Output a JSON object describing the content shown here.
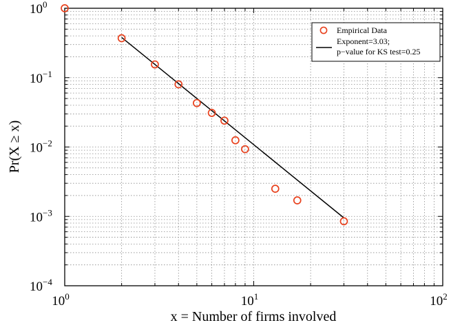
{
  "chart_data": {
    "type": "scatter",
    "xscale": "log",
    "yscale": "log",
    "xlim": [
      1,
      100
    ],
    "ylim": [
      0.0001,
      1
    ],
    "xlabel": "x = Number of firms involved",
    "ylabel": "Pr(X ≥ x)",
    "grid": true,
    "legend_position": "top-right",
    "x_ticks": [
      {
        "value": 1,
        "base": "10",
        "exp": "0"
      },
      {
        "value": 10,
        "base": "10",
        "exp": "1"
      },
      {
        "value": 100,
        "base": "10",
        "exp": "2"
      }
    ],
    "y_ticks": [
      {
        "value": 1,
        "base": "10",
        "exp": "0"
      },
      {
        "value": 0.1,
        "base": "10",
        "exp": "−1"
      },
      {
        "value": 0.01,
        "base": "10",
        "exp": "−2"
      },
      {
        "value": 0.001,
        "base": "10",
        "exp": "−3"
      },
      {
        "value": 0.0001,
        "base": "10",
        "exp": "−4"
      }
    ],
    "series": [
      {
        "name": "Empirical Data",
        "kind": "markers",
        "color": "#e8401c",
        "points": [
          {
            "x": 1,
            "y": 1.0
          },
          {
            "x": 2,
            "y": 0.37
          },
          {
            "x": 3,
            "y": 0.155
          },
          {
            "x": 4,
            "y": 0.08
          },
          {
            "x": 5,
            "y": 0.043
          },
          {
            "x": 6,
            "y": 0.031
          },
          {
            "x": 7,
            "y": 0.024
          },
          {
            "x": 8,
            "y": 0.0125
          },
          {
            "x": 9,
            "y": 0.0093
          },
          {
            "x": 13,
            "y": 0.0025
          },
          {
            "x": 17,
            "y": 0.0017
          },
          {
            "x": 30,
            "y": 0.00085
          }
        ]
      },
      {
        "name": "Exponent=3.03;",
        "name_line2": "p−value for KS test=0.25",
        "kind": "line",
        "color": "#000000",
        "points": [
          {
            "x": 2,
            "y": 0.38
          },
          {
            "x": 30,
            "y": 0.00095
          }
        ]
      }
    ]
  }
}
